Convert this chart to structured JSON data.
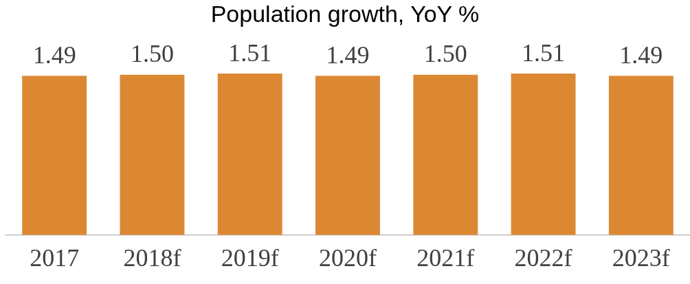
{
  "chart_data": {
    "type": "bar",
    "title": "Population growth, YoY %",
    "categories": [
      "2017",
      "2018f",
      "2019f",
      "2020f",
      "2021f",
      "2022f",
      "2023f"
    ],
    "values": [
      1.49,
      1.5,
      1.51,
      1.49,
      1.5,
      1.51,
      1.49
    ],
    "value_labels": [
      "1.49",
      "1.50",
      "1.51",
      "1.49",
      "1.50",
      "1.51",
      "1.49"
    ],
    "color": "#dc8833",
    "relative": false,
    "data_labels": true,
    "grid": false,
    "legend": false
  }
}
